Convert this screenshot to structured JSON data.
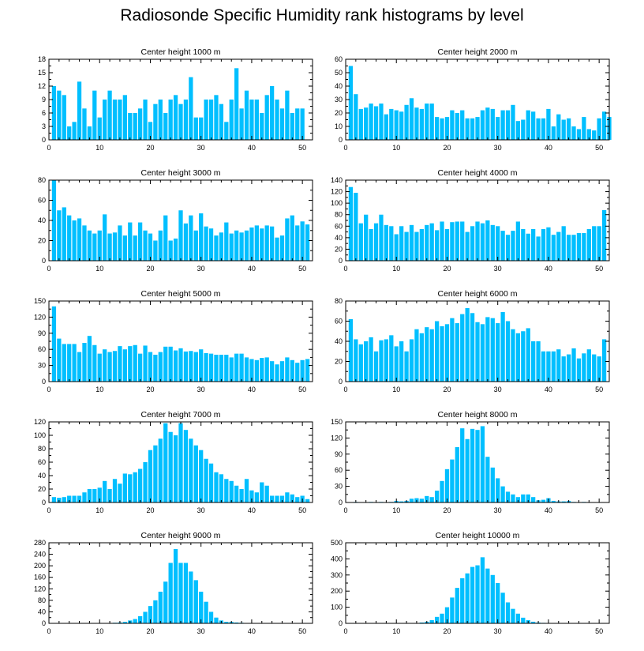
{
  "title": "Radiosonde Specific Humidity rank histograms by level",
  "colors": {
    "bar": "#00bfff",
    "axis": "#000000"
  },
  "chart_data": [
    {
      "type": "bar",
      "title": "Center height 1000 m",
      "ylim": [
        0,
        18
      ],
      "yticks": [
        0,
        3,
        6,
        9,
        12,
        15,
        18
      ],
      "xlim": [
        0,
        52
      ],
      "xticks": [
        0,
        10,
        20,
        30,
        40,
        50
      ],
      "values": [
        0,
        12,
        11,
        10,
        3,
        4,
        13,
        7,
        3,
        11,
        5,
        9,
        11,
        9,
        9,
        10,
        6,
        6,
        7,
        9,
        4,
        8,
        9,
        6,
        9,
        10,
        8,
        9,
        14,
        5,
        5,
        9,
        9,
        10,
        8,
        4,
        9,
        16,
        7,
        11,
        9,
        9,
        6,
        10,
        12,
        9,
        7,
        11,
        6,
        7,
        7
      ]
    },
    {
      "type": "bar",
      "title": "Center height 2000 m",
      "ylim": [
        0,
        60
      ],
      "yticks": [
        0,
        10,
        20,
        30,
        40,
        50,
        60
      ],
      "xlim": [
        0,
        52
      ],
      "xticks": [
        0,
        10,
        20,
        30,
        40,
        50
      ],
      "values": [
        0,
        55,
        34,
        23,
        24,
        27,
        25,
        27,
        19,
        23,
        22,
        21,
        26,
        31,
        24,
        23,
        27,
        27,
        17,
        16,
        17,
        22,
        20,
        22,
        16,
        16,
        17,
        22,
        24,
        23,
        17,
        22,
        22,
        26,
        14,
        15,
        22,
        21,
        16,
        16,
        23,
        10,
        19,
        15,
        16,
        10,
        8,
        17,
        8,
        7,
        16,
        21,
        17
      ]
    },
    {
      "type": "bar",
      "title": "Center height 3000 m",
      "ylim": [
        0,
        80
      ],
      "yticks": [
        0,
        20,
        40,
        60,
        80
      ],
      "xlim": [
        0,
        52
      ],
      "xticks": [
        0,
        10,
        20,
        30,
        40,
        50
      ],
      "values": [
        0,
        80,
        50,
        53,
        45,
        40,
        42,
        35,
        30,
        27,
        30,
        46,
        27,
        28,
        35,
        25,
        38,
        25,
        38,
        30,
        27,
        20,
        30,
        45,
        20,
        22,
        50,
        37,
        45,
        30,
        47,
        34,
        32,
        25,
        28,
        38,
        27,
        30,
        28,
        30,
        33,
        35,
        32,
        35,
        34,
        23,
        25,
        42,
        45,
        35,
        39,
        36
      ]
    },
    {
      "type": "bar",
      "title": "Center height 4000 m",
      "ylim": [
        0,
        140
      ],
      "yticks": [
        0,
        20,
        40,
        60,
        80,
        100,
        120,
        140
      ],
      "xlim": [
        0,
        52
      ],
      "xticks": [
        0,
        10,
        20,
        30,
        40,
        50
      ],
      "values": [
        0,
        128,
        118,
        65,
        80,
        55,
        65,
        80,
        62,
        60,
        46,
        60,
        50,
        62,
        50,
        55,
        62,
        65,
        53,
        68,
        55,
        67,
        68,
        68,
        50,
        60,
        68,
        65,
        70,
        62,
        60,
        52,
        45,
        52,
        68,
        55,
        47,
        55,
        42,
        55,
        58,
        45,
        50,
        60,
        45,
        45,
        48,
        48,
        55,
        60,
        60,
        88
      ]
    },
    {
      "type": "bar",
      "title": "Center height 5000 m",
      "ylim": [
        0,
        150
      ],
      "yticks": [
        0,
        30,
        60,
        90,
        120,
        150
      ],
      "xlim": [
        0,
        52
      ],
      "xticks": [
        0,
        10,
        20,
        30,
        40,
        50
      ],
      "values": [
        0,
        140,
        80,
        70,
        70,
        70,
        55,
        72,
        85,
        68,
        52,
        60,
        55,
        57,
        66,
        60,
        66,
        68,
        52,
        67,
        55,
        50,
        55,
        65,
        65,
        58,
        62,
        56,
        57,
        55,
        60,
        53,
        52,
        50,
        50,
        50,
        45,
        52,
        52,
        45,
        42,
        40,
        44,
        45,
        38,
        32,
        38,
        45,
        40,
        35,
        40,
        42
      ]
    },
    {
      "type": "bar",
      "title": "Center height 6000 m",
      "ylim": [
        0,
        80
      ],
      "yticks": [
        0,
        20,
        40,
        60,
        80
      ],
      "xlim": [
        0,
        52
      ],
      "xticks": [
        0,
        10,
        20,
        30,
        40,
        50
      ],
      "values": [
        0,
        62,
        42,
        37,
        40,
        44,
        30,
        41,
        42,
        46,
        35,
        40,
        30,
        42,
        52,
        48,
        54,
        52,
        60,
        55,
        57,
        63,
        58,
        67,
        73,
        68,
        59,
        57,
        64,
        63,
        58,
        69,
        60,
        52,
        48,
        50,
        53,
        40,
        40,
        30,
        30,
        30,
        32,
        25,
        27,
        33,
        23,
        28,
        32,
        27,
        25,
        42
      ]
    },
    {
      "type": "bar",
      "title": "Center height 7000 m",
      "ylim": [
        0,
        120
      ],
      "yticks": [
        0,
        20,
        40,
        60,
        80,
        100,
        120
      ],
      "xlim": [
        0,
        52
      ],
      "xticks": [
        0,
        10,
        20,
        30,
        40,
        50
      ],
      "values": [
        0,
        8,
        7,
        8,
        10,
        10,
        10,
        15,
        20,
        20,
        22,
        32,
        20,
        35,
        28,
        43,
        42,
        45,
        50,
        60,
        78,
        85,
        95,
        118,
        105,
        100,
        118,
        108,
        95,
        85,
        78,
        65,
        58,
        45,
        42,
        35,
        32,
        25,
        20,
        35,
        18,
        15,
        30,
        25,
        10,
        10,
        10,
        15,
        12,
        8,
        10,
        5
      ]
    },
    {
      "type": "bar",
      "title": "Center height 8000 m",
      "ylim": [
        0,
        150
      ],
      "yticks": [
        0,
        30,
        60,
        90,
        120,
        150
      ],
      "xlim": [
        0,
        52
      ],
      "xticks": [
        0,
        10,
        20,
        30,
        40,
        50
      ],
      "values": [
        0,
        0,
        1,
        0,
        0,
        1,
        0,
        1,
        0,
        1,
        3,
        2,
        3,
        7,
        8,
        7,
        12,
        10,
        22,
        40,
        62,
        80,
        103,
        138,
        118,
        137,
        135,
        142,
        85,
        65,
        45,
        30,
        20,
        15,
        10,
        15,
        15,
        10,
        4,
        5,
        8,
        3,
        2,
        2,
        3,
        1,
        0,
        1,
        0,
        0,
        0,
        0
      ]
    },
    {
      "type": "bar",
      "title": "Center height 9000 m",
      "ylim": [
        0,
        280
      ],
      "yticks": [
        0,
        40,
        80,
        120,
        160,
        200,
        240,
        280
      ],
      "xlim": [
        0,
        52
      ],
      "xticks": [
        0,
        10,
        20,
        30,
        40,
        50
      ],
      "values": [
        0,
        0,
        0,
        0,
        0,
        0,
        0,
        0,
        0,
        0,
        0,
        0,
        1,
        2,
        3,
        5,
        10,
        15,
        25,
        40,
        60,
        80,
        110,
        145,
        210,
        258,
        210,
        210,
        180,
        150,
        110,
        75,
        40,
        20,
        10,
        5,
        5,
        3,
        2,
        1,
        0,
        0,
        0,
        0,
        0,
        0,
        0,
        0,
        0,
        0,
        0,
        0
      ]
    },
    {
      "type": "bar",
      "title": "Center height 10000 m",
      "ylim": [
        0,
        500
      ],
      "yticks": [
        0,
        100,
        200,
        300,
        400,
        500
      ],
      "xlim": [
        0,
        52
      ],
      "xticks": [
        0,
        10,
        20,
        30,
        40,
        50
      ],
      "values": [
        0,
        0,
        0,
        0,
        0,
        0,
        0,
        0,
        0,
        0,
        0,
        0,
        0,
        0,
        1,
        5,
        10,
        20,
        40,
        60,
        100,
        160,
        220,
        280,
        310,
        350,
        360,
        410,
        340,
        300,
        250,
        190,
        130,
        90,
        60,
        35,
        20,
        10,
        5,
        3,
        2,
        1,
        1,
        0,
        0,
        0,
        0,
        0,
        0,
        0,
        0,
        0
      ]
    }
  ]
}
